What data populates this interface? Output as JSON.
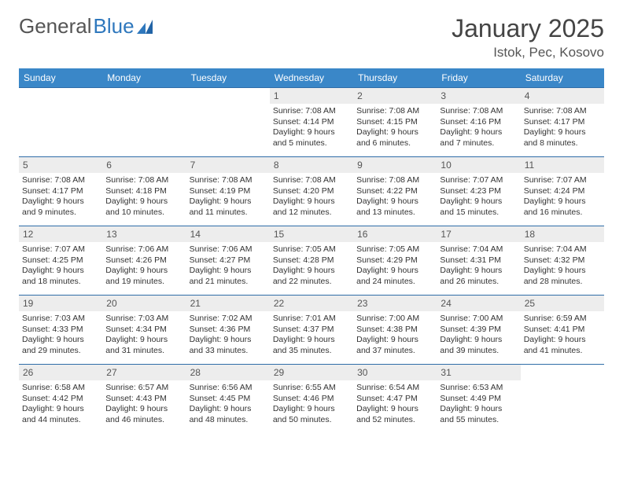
{
  "logo": {
    "text1": "General",
    "text2": "Blue"
  },
  "title": "January 2025",
  "location": "Istok, Pec, Kosovo",
  "day_headers": [
    "Sunday",
    "Monday",
    "Tuesday",
    "Wednesday",
    "Thursday",
    "Friday",
    "Saturday"
  ],
  "colors": {
    "header_bg": "#3a87c8",
    "header_text": "#ffffff",
    "daynum_bg": "#ededed",
    "cell_border": "#2f6da8",
    "logo_blue": "#2f78bd"
  },
  "weeks": [
    [
      null,
      null,
      null,
      {
        "n": "1",
        "sr": "Sunrise: 7:08 AM",
        "ss": "Sunset: 4:14 PM",
        "dl1": "Daylight: 9 hours",
        "dl2": "and 5 minutes."
      },
      {
        "n": "2",
        "sr": "Sunrise: 7:08 AM",
        "ss": "Sunset: 4:15 PM",
        "dl1": "Daylight: 9 hours",
        "dl2": "and 6 minutes."
      },
      {
        "n": "3",
        "sr": "Sunrise: 7:08 AM",
        "ss": "Sunset: 4:16 PM",
        "dl1": "Daylight: 9 hours",
        "dl2": "and 7 minutes."
      },
      {
        "n": "4",
        "sr": "Sunrise: 7:08 AM",
        "ss": "Sunset: 4:17 PM",
        "dl1": "Daylight: 9 hours",
        "dl2": "and 8 minutes."
      }
    ],
    [
      {
        "n": "5",
        "sr": "Sunrise: 7:08 AM",
        "ss": "Sunset: 4:17 PM",
        "dl1": "Daylight: 9 hours",
        "dl2": "and 9 minutes."
      },
      {
        "n": "6",
        "sr": "Sunrise: 7:08 AM",
        "ss": "Sunset: 4:18 PM",
        "dl1": "Daylight: 9 hours",
        "dl2": "and 10 minutes."
      },
      {
        "n": "7",
        "sr": "Sunrise: 7:08 AM",
        "ss": "Sunset: 4:19 PM",
        "dl1": "Daylight: 9 hours",
        "dl2": "and 11 minutes."
      },
      {
        "n": "8",
        "sr": "Sunrise: 7:08 AM",
        "ss": "Sunset: 4:20 PM",
        "dl1": "Daylight: 9 hours",
        "dl2": "and 12 minutes."
      },
      {
        "n": "9",
        "sr": "Sunrise: 7:08 AM",
        "ss": "Sunset: 4:22 PM",
        "dl1": "Daylight: 9 hours",
        "dl2": "and 13 minutes."
      },
      {
        "n": "10",
        "sr": "Sunrise: 7:07 AM",
        "ss": "Sunset: 4:23 PM",
        "dl1": "Daylight: 9 hours",
        "dl2": "and 15 minutes."
      },
      {
        "n": "11",
        "sr": "Sunrise: 7:07 AM",
        "ss": "Sunset: 4:24 PM",
        "dl1": "Daylight: 9 hours",
        "dl2": "and 16 minutes."
      }
    ],
    [
      {
        "n": "12",
        "sr": "Sunrise: 7:07 AM",
        "ss": "Sunset: 4:25 PM",
        "dl1": "Daylight: 9 hours",
        "dl2": "and 18 minutes."
      },
      {
        "n": "13",
        "sr": "Sunrise: 7:06 AM",
        "ss": "Sunset: 4:26 PM",
        "dl1": "Daylight: 9 hours",
        "dl2": "and 19 minutes."
      },
      {
        "n": "14",
        "sr": "Sunrise: 7:06 AM",
        "ss": "Sunset: 4:27 PM",
        "dl1": "Daylight: 9 hours",
        "dl2": "and 21 minutes."
      },
      {
        "n": "15",
        "sr": "Sunrise: 7:05 AM",
        "ss": "Sunset: 4:28 PM",
        "dl1": "Daylight: 9 hours",
        "dl2": "and 22 minutes."
      },
      {
        "n": "16",
        "sr": "Sunrise: 7:05 AM",
        "ss": "Sunset: 4:29 PM",
        "dl1": "Daylight: 9 hours",
        "dl2": "and 24 minutes."
      },
      {
        "n": "17",
        "sr": "Sunrise: 7:04 AM",
        "ss": "Sunset: 4:31 PM",
        "dl1": "Daylight: 9 hours",
        "dl2": "and 26 minutes."
      },
      {
        "n": "18",
        "sr": "Sunrise: 7:04 AM",
        "ss": "Sunset: 4:32 PM",
        "dl1": "Daylight: 9 hours",
        "dl2": "and 28 minutes."
      }
    ],
    [
      {
        "n": "19",
        "sr": "Sunrise: 7:03 AM",
        "ss": "Sunset: 4:33 PM",
        "dl1": "Daylight: 9 hours",
        "dl2": "and 29 minutes."
      },
      {
        "n": "20",
        "sr": "Sunrise: 7:03 AM",
        "ss": "Sunset: 4:34 PM",
        "dl1": "Daylight: 9 hours",
        "dl2": "and 31 minutes."
      },
      {
        "n": "21",
        "sr": "Sunrise: 7:02 AM",
        "ss": "Sunset: 4:36 PM",
        "dl1": "Daylight: 9 hours",
        "dl2": "and 33 minutes."
      },
      {
        "n": "22",
        "sr": "Sunrise: 7:01 AM",
        "ss": "Sunset: 4:37 PM",
        "dl1": "Daylight: 9 hours",
        "dl2": "and 35 minutes."
      },
      {
        "n": "23",
        "sr": "Sunrise: 7:00 AM",
        "ss": "Sunset: 4:38 PM",
        "dl1": "Daylight: 9 hours",
        "dl2": "and 37 minutes."
      },
      {
        "n": "24",
        "sr": "Sunrise: 7:00 AM",
        "ss": "Sunset: 4:39 PM",
        "dl1": "Daylight: 9 hours",
        "dl2": "and 39 minutes."
      },
      {
        "n": "25",
        "sr": "Sunrise: 6:59 AM",
        "ss": "Sunset: 4:41 PM",
        "dl1": "Daylight: 9 hours",
        "dl2": "and 41 minutes."
      }
    ],
    [
      {
        "n": "26",
        "sr": "Sunrise: 6:58 AM",
        "ss": "Sunset: 4:42 PM",
        "dl1": "Daylight: 9 hours",
        "dl2": "and 44 minutes."
      },
      {
        "n": "27",
        "sr": "Sunrise: 6:57 AM",
        "ss": "Sunset: 4:43 PM",
        "dl1": "Daylight: 9 hours",
        "dl2": "and 46 minutes."
      },
      {
        "n": "28",
        "sr": "Sunrise: 6:56 AM",
        "ss": "Sunset: 4:45 PM",
        "dl1": "Daylight: 9 hours",
        "dl2": "and 48 minutes."
      },
      {
        "n": "29",
        "sr": "Sunrise: 6:55 AM",
        "ss": "Sunset: 4:46 PM",
        "dl1": "Daylight: 9 hours",
        "dl2": "and 50 minutes."
      },
      {
        "n": "30",
        "sr": "Sunrise: 6:54 AM",
        "ss": "Sunset: 4:47 PM",
        "dl1": "Daylight: 9 hours",
        "dl2": "and 52 minutes."
      },
      {
        "n": "31",
        "sr": "Sunrise: 6:53 AM",
        "ss": "Sunset: 4:49 PM",
        "dl1": "Daylight: 9 hours",
        "dl2": "and 55 minutes."
      },
      null
    ]
  ]
}
